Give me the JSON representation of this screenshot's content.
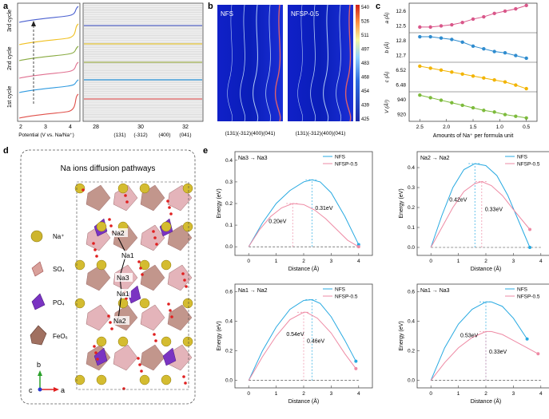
{
  "panel_letters": [
    "a",
    "b",
    "c",
    "d",
    "e"
  ],
  "panel_a": {
    "cycles": [
      "1st cycle",
      "2nd cycle",
      "3rd cycle"
    ],
    "left_x_ticks": [
      "2",
      "3",
      "4"
    ],
    "left_xlabel": "Potential (V vs. Na/Na⁺)",
    "right_x_ticks": [
      "28",
      "30",
      "32"
    ],
    "peak_labels": [
      "(131)",
      "(-312)",
      "(400)",
      "(041)"
    ]
  },
  "panel_b": {
    "map_labels": [
      "NFS",
      "NFSP-0.5"
    ],
    "colorbar_ticks": [
      "540",
      "526",
      "511",
      "497",
      "483",
      "468",
      "454",
      "439",
      "425"
    ],
    "bottom_labels": [
      "(131)(-312)(400)(041)",
      "(131)(-312)(400)(041)"
    ]
  },
  "panel_c": {
    "xlabel": "Amounts of Na⁺ per formula unit",
    "x_ticks": [
      "2.5",
      "2.0",
      "1.5",
      "1.0",
      "0.5"
    ],
    "subplots": [
      {
        "ylabel": "a (Å)",
        "ticks": [
          "12.6",
          "12.5"
        ],
        "color": "#d9578a"
      },
      {
        "ylabel": "b (Å)",
        "ticks": [
          "12.8",
          "12.7"
        ],
        "color": "#2f8ccf"
      },
      {
        "ylabel": "c (Å)",
        "ticks": [
          "6.52",
          "6.48"
        ],
        "color": "#f2b400"
      },
      {
        "ylabel": "V (Å³)",
        "ticks": [
          "940",
          "920"
        ],
        "color": "#7dbb3c"
      }
    ]
  },
  "panel_d": {
    "title": "Na ions diffusion pathways",
    "legend": [
      "Na⁺",
      "SO₄",
      "PO₄",
      "FeO₆"
    ],
    "axes": [
      "b",
      "c",
      "a"
    ],
    "site_labels": [
      "Na2",
      "Na1",
      "Na3",
      "Na1",
      "Na2"
    ]
  },
  "panel_e": {
    "ylabel": "Energy (eV)",
    "xlabel": "Distance (Å)",
    "series_names": [
      "NFS",
      "NFSP-0.5"
    ],
    "colors": {
      "NFS": "#27a9e1",
      "NFSP": "#ee8aa4"
    },
    "subplots": [
      {
        "title": "Na3 → Na3",
        "y_ticks": [
          "0.0",
          "0.1",
          "0.2",
          "0.3",
          "0.4"
        ],
        "x_ticks": [
          "0",
          "1",
          "2",
          "3",
          "4"
        ],
        "barriers": [
          "0.31eV",
          "0.20eV"
        ]
      },
      {
        "title": "Na2 → Na2",
        "y_ticks": [
          "0.0",
          "0.1",
          "0.2",
          "0.3",
          "0.4"
        ],
        "x_ticks": [
          "0",
          "1",
          "2",
          "3",
          "4"
        ],
        "barriers": [
          "0.42eV",
          "0.33eV"
        ]
      },
      {
        "title": "Na1 → Na2",
        "y_ticks": [
          "0.0",
          "0.2",
          "0.4",
          "0.6"
        ],
        "x_ticks": [
          "0",
          "1",
          "2",
          "3",
          "4"
        ],
        "barriers": [
          "0.54eV",
          "0.46eV"
        ]
      },
      {
        "title": "Na1 → Na3",
        "y_ticks": [
          "0.0",
          "0.2",
          "0.4",
          "0.6"
        ],
        "x_ticks": [
          "0",
          "1",
          "2",
          "3",
          "4"
        ],
        "barriers": [
          "0.53eV",
          "0.33eV"
        ]
      }
    ]
  },
  "chart_data": [
    {
      "type": "line",
      "panel": "c",
      "xlabel": "Amounts of Na⁺ per formula unit",
      "x": [
        2.5,
        2.3,
        2.1,
        1.9,
        1.7,
        1.5,
        1.3,
        1.1,
        0.9,
        0.7,
        0.5
      ],
      "series": [
        {
          "name": "a (Å)",
          "values": [
            12.47,
            12.47,
            12.48,
            12.49,
            12.51,
            12.54,
            12.56,
            12.59,
            12.61,
            12.63,
            12.66
          ],
          "ylim": [
            12.42,
            12.68
          ]
        },
        {
          "name": "b (Å)",
          "values": [
            12.83,
            12.83,
            12.82,
            12.81,
            12.79,
            12.76,
            12.74,
            12.72,
            12.71,
            12.69,
            12.67
          ],
          "ylim": [
            12.64,
            12.86
          ]
        },
        {
          "name": "c (Å)",
          "values": [
            6.535,
            6.53,
            6.525,
            6.52,
            6.515,
            6.51,
            6.505,
            6.5,
            6.495,
            6.487,
            6.478
          ],
          "ylim": [
            6.47,
            6.545
          ]
        },
        {
          "name": "V (Å³)",
          "values": [
            941,
            938,
            935,
            932,
            929,
            926,
            923,
            921,
            918,
            916,
            914
          ],
          "ylim": [
            910,
            945
          ]
        }
      ]
    },
    {
      "type": "line",
      "panel": "e",
      "title": "Na3 → Na3",
      "xlabel": "Distance (Å)",
      "ylabel": "Energy (eV)",
      "xlim": [
        -0.5,
        4.5
      ],
      "ylim": [
        -0.04,
        0.44
      ],
      "series": [
        {
          "name": "NFS",
          "x": [
            0,
            0.5,
            1,
            1.5,
            2,
            2.3,
            2.6,
            3,
            3.5,
            4.0
          ],
          "values": [
            0,
            0.11,
            0.2,
            0.26,
            0.3,
            0.31,
            0.3,
            0.25,
            0.14,
            0.01
          ]
        },
        {
          "name": "NFSP-0.5",
          "x": [
            0,
            0.4,
            0.8,
            1.2,
            1.6,
            2.0,
            2.4,
            2.8,
            3.2,
            3.6,
            4.0
          ],
          "values": [
            0,
            0.08,
            0.14,
            0.18,
            0.2,
            0.195,
            0.17,
            0.13,
            0.08,
            0.03,
            0.0
          ]
        }
      ],
      "annotations": [
        "0.31eV",
        "0.20eV"
      ]
    },
    {
      "type": "line",
      "panel": "e",
      "title": "Na2 → Na2",
      "xlabel": "Distance (Å)",
      "ylabel": "Energy (eV)",
      "xlim": [
        -0.5,
        4.5
      ],
      "ylim": [
        -0.04,
        0.48
      ],
      "series": [
        {
          "name": "NFS",
          "x": [
            0,
            0.4,
            0.8,
            1.2,
            1.6,
            2.0,
            2.4,
            2.8,
            3.2,
            3.6
          ],
          "values": [
            0,
            0.16,
            0.3,
            0.39,
            0.42,
            0.41,
            0.36,
            0.26,
            0.13,
            0.0
          ]
        },
        {
          "name": "NFSP-0.5",
          "x": [
            0,
            0.4,
            0.8,
            1.2,
            1.6,
            1.85,
            2.2,
            2.6,
            3.0,
            3.6
          ],
          "values": [
            0,
            0.1,
            0.2,
            0.28,
            0.32,
            0.33,
            0.31,
            0.26,
            0.19,
            0.09
          ]
        }
      ],
      "annotations": [
        "0.42eV",
        "0.33eV"
      ]
    },
    {
      "type": "line",
      "panel": "e",
      "title": "Na1 → Na2",
      "xlabel": "Distance (Å)",
      "ylabel": "Energy (eV)",
      "xlim": [
        -0.5,
        4.5
      ],
      "ylim": [
        -0.05,
        0.65
      ],
      "series": [
        {
          "name": "NFS",
          "x": [
            0,
            0.5,
            1,
            1.5,
            2,
            2.3,
            2.6,
            3,
            3.5,
            3.9
          ],
          "values": [
            0,
            0.2,
            0.36,
            0.48,
            0.54,
            0.545,
            0.52,
            0.43,
            0.27,
            0.13
          ]
        },
        {
          "name": "NFSP-0.5",
          "x": [
            0,
            0.5,
            1,
            1.5,
            2,
            2.1,
            2.5,
            3,
            3.5,
            3.9
          ],
          "values": [
            0,
            0.16,
            0.3,
            0.41,
            0.46,
            0.46,
            0.42,
            0.32,
            0.18,
            0.08
          ]
        }
      ],
      "annotations": [
        "0.54eV",
        "0.46eV"
      ]
    },
    {
      "type": "line",
      "panel": "e",
      "title": "Na1 → Na3",
      "xlabel": "Distance (Å)",
      "ylabel": "Energy (eV)",
      "xlim": [
        -0.5,
        4.5
      ],
      "ylim": [
        -0.05,
        0.65
      ],
      "series": [
        {
          "name": "NFS",
          "x": [
            0,
            0.5,
            1,
            1.5,
            2,
            2.2,
            2.6,
            3,
            3.5
          ],
          "values": [
            0,
            0.22,
            0.38,
            0.48,
            0.53,
            0.53,
            0.5,
            0.42,
            0.28
          ]
        },
        {
          "name": "NFSP-0.5",
          "x": [
            0,
            0.5,
            1,
            1.5,
            2,
            2.2,
            2.6,
            3,
            3.5,
            3.9
          ],
          "values": [
            0,
            0.12,
            0.22,
            0.29,
            0.33,
            0.33,
            0.31,
            0.27,
            0.22,
            0.18
          ]
        }
      ],
      "annotations": [
        "0.53eV",
        "0.33eV"
      ]
    }
  ]
}
